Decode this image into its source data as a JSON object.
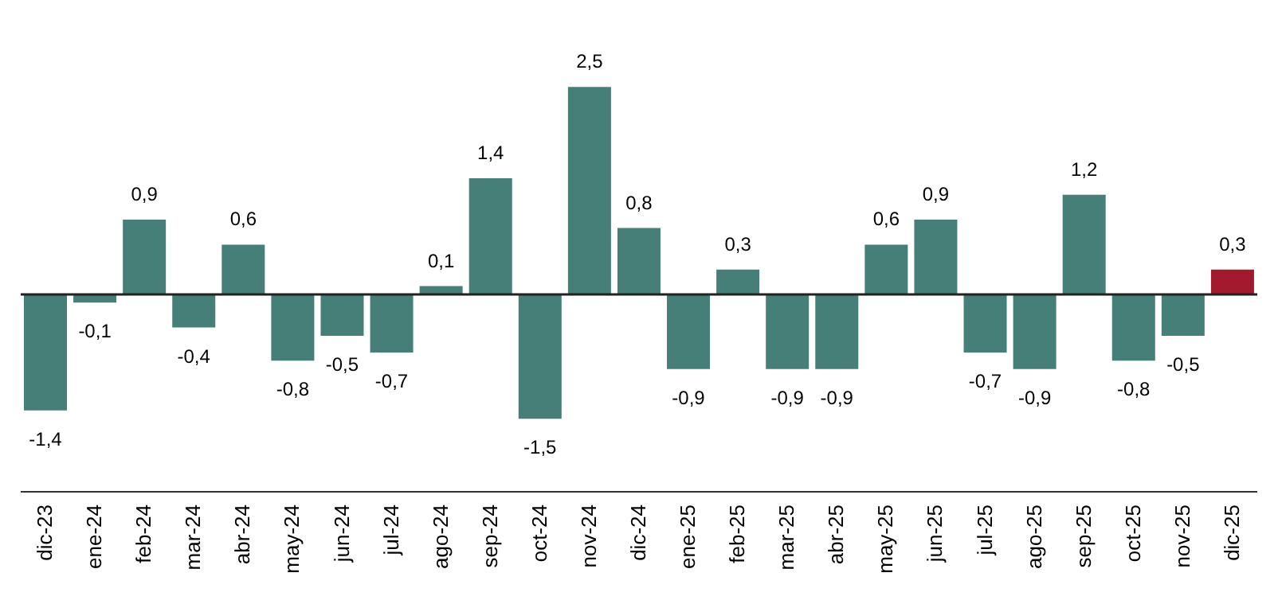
{
  "chart_data": {
    "type": "bar",
    "categories": [
      "dic-23",
      "ene-24",
      "feb-24",
      "mar-24",
      "abr-24",
      "may-24",
      "jun-24",
      "jul-24",
      "ago-24",
      "sep-24",
      "oct-24",
      "nov-24",
      "dic-24",
      "ene-25",
      "feb-25",
      "mar-25",
      "abr-25",
      "may-25",
      "jun-25",
      "jul-25",
      "ago-25",
      "sep-25",
      "oct-25",
      "nov-25",
      "dic-25"
    ],
    "values": [
      -1.4,
      -0.1,
      0.9,
      -0.4,
      0.6,
      -0.8,
      -0.5,
      -0.7,
      0.1,
      1.4,
      -1.5,
      2.5,
      0.8,
      -0.9,
      0.3,
      -0.9,
      -0.9,
      0.6,
      0.9,
      -0.7,
      -0.9,
      1.2,
      -0.8,
      -0.5,
      0.3
    ],
    "value_labels": [
      "-1,4",
      "-0,1",
      "0,9",
      "-0,4",
      "0,6",
      "-0,8",
      "-0,5",
      "-0,7",
      "0,1",
      "1,4",
      "-1,5",
      "2,5",
      "0,8",
      "-0,9",
      "0,3",
      "-0,9",
      "-0,9",
      "0,6",
      "0,9",
      "-0,7",
      "-0,9",
      "1,2",
      "-0,8",
      "-0,5",
      "0,3"
    ],
    "colors": [
      "#467f77",
      "#467f77",
      "#467f77",
      "#467f77",
      "#467f77",
      "#467f77",
      "#467f77",
      "#467f77",
      "#467f77",
      "#467f77",
      "#467f77",
      "#467f77",
      "#467f77",
      "#467f77",
      "#467f77",
      "#467f77",
      "#467f77",
      "#467f77",
      "#467f77",
      "#467f77",
      "#467f77",
      "#467f77",
      "#467f77",
      "#467f77",
      "#a31a2f"
    ],
    "tick_labels": "x",
    "grid": false,
    "legend": false
  }
}
